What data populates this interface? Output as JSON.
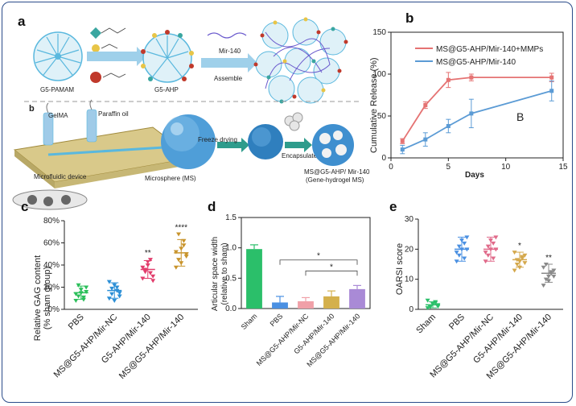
{
  "panel_a": {
    "letter": "a",
    "sub_letter": "b",
    "g5_pamam": "G5-PAMAM",
    "g5_ahp": "G5-AHP",
    "mir140": "Mir-140",
    "assemble": "Assemble",
    "gelma": "GelMA",
    "paraffin": "Paraffin oil",
    "microsphere": "Microsphere (MS)",
    "freeze": "Freeze drying",
    "encapsulate": "Encapsulate",
    "product_line1": "MS@G5-AHP/ Mir-140",
    "product_line2": "(Gene-hydrogel MS)",
    "device": "Microfluidic device",
    "colors": {
      "dendrimer": "#5ab8de",
      "arrow": "#4a90c8",
      "dot_red": "#c0392b",
      "dot_yellow": "#e8c547",
      "dot_teal": "#3aa6a0"
    }
  },
  "panel_b": {
    "letter": "b",
    "annotation": "B",
    "ylabel": "Cumulative Release (%)",
    "xlabel": "Days",
    "legend": [
      "MS@G5-AHP/Mir-140+MMPs",
      "MS@G5-AHP/Mir-140"
    ]
  },
  "panel_c": {
    "letter": "c",
    "ylabel_line1": "Relative GAG content",
    "ylabel_line2": "(% sham group)"
  },
  "panel_d": {
    "letter": "d",
    "ylabel_line1": "Articular space width",
    "ylabel_line2": "(relative to sham)"
  },
  "panel_e": {
    "letter": "e",
    "ylabel": "OARSI score"
  },
  "chart_data": [
    {
      "type": "line",
      "panel": "b",
      "xlabel": "Days",
      "ylabel": "Cumulative Release (%)",
      "xlim": [
        0,
        15
      ],
      "ylim": [
        0,
        150
      ],
      "xticks": [
        0,
        5,
        10,
        15
      ],
      "yticks": [
        0,
        50,
        100,
        150
      ],
      "legend_position": "top-right",
      "series": [
        {
          "name": "MS@G5-AHP/Mir-140+MMPs",
          "color": "#e57373",
          "x": [
            1,
            3,
            5,
            7,
            14
          ],
          "y": [
            20,
            63,
            93,
            96,
            96
          ],
          "err": [
            3,
            4,
            9,
            4,
            5
          ]
        },
        {
          "name": "MS@G5-AHP/Mir-140",
          "color": "#5b9bd5",
          "x": [
            1,
            3,
            5,
            7,
            14
          ],
          "y": [
            10,
            22,
            38,
            53,
            80
          ],
          "err": [
            5,
            8,
            8,
            17,
            12
          ]
        }
      ]
    },
    {
      "type": "scatter",
      "panel": "c",
      "ylabel": "Relative GAG content (% sham group)",
      "ylim": [
        0,
        80
      ],
      "yticks": [
        0,
        20,
        40,
        60,
        80
      ],
      "yticklabels": [
        "0%",
        "20%",
        "40%",
        "60%",
        "80%"
      ],
      "categories": [
        "PBS",
        "MS@G5-AHP/Mir-NC",
        "G5-AHP/Mir-140",
        "MS@G5-AHP/Mir-140"
      ],
      "colors": [
        "#2bbf5a",
        "#2c8fd6",
        "#e23d6c",
        "#c8942c"
      ],
      "means": [
        15,
        17,
        36,
        51
      ],
      "sd": [
        6,
        7,
        8,
        12
      ],
      "significance": [
        "",
        "",
        "**",
        "****"
      ],
      "points": [
        [
          8,
          12,
          15,
          9,
          20,
          14,
          22,
          18,
          11,
          16
        ],
        [
          10,
          14,
          22,
          17,
          12,
          25,
          19,
          8,
          20,
          15
        ],
        [
          28,
          34,
          40,
          45,
          30,
          38,
          36,
          43,
          33,
          26
        ],
        [
          38,
          45,
          55,
          62,
          48,
          52,
          68,
          42,
          58,
          50
        ]
      ]
    },
    {
      "type": "bar",
      "panel": "d",
      "ylabel": "Articular space width (relative to sham)",
      "ylim": [
        0,
        1.5
      ],
      "yticks": [
        0.0,
        0.5,
        1.0,
        1.5
      ],
      "yticklabels": [
        "0.0",
        "0.5",
        "1.0",
        "1.5"
      ],
      "categories": [
        "Sham",
        "PBS",
        "MS@G5-AHP/Mir-NC",
        "G5-AHP/Mir-140",
        "MS@G5-AHP/Mir-140"
      ],
      "colors": [
        "#2bbf6a",
        "#4a90e2",
        "#f0a0a8",
        "#d4b04c",
        "#a98ad6"
      ],
      "values": [
        0.98,
        0.1,
        0.12,
        0.2,
        0.32
      ],
      "err": [
        0.07,
        0.1,
        0.06,
        0.09,
        0.06
      ],
      "significance": [
        {
          "from": 1,
          "to": 4,
          "label": "*"
        },
        {
          "from": 2,
          "to": 4,
          "label": "*"
        }
      ]
    },
    {
      "type": "scatter",
      "panel": "e",
      "ylabel": "OARSI score",
      "ylim": [
        0,
        30
      ],
      "yticks": [
        0,
        10,
        20,
        30
      ],
      "yticklabels": [
        "0",
        "10",
        "20",
        "30"
      ],
      "categories": [
        "Sham",
        "PBS",
        "MS@G5-AHP/Mir-NC",
        "G5-AHP/Mir-140",
        "MS@G5-AHP/Mir-140"
      ],
      "colors": [
        "#2bbf6a",
        "#4a90e2",
        "#e06a8a",
        "#d4a84c",
        "#8a8a8a"
      ],
      "means": [
        1.5,
        20,
        20,
        16.5,
        12
      ],
      "sd": [
        1,
        4,
        4,
        2.5,
        3
      ],
      "significance": [
        "",
        "",
        "",
        "*",
        "**"
      ],
      "points": [
        [
          0.5,
          1,
          2,
          2.5,
          1.5,
          3,
          0.8,
          1.8,
          2.2,
          1
        ],
        [
          16,
          18,
          20,
          22,
          24,
          19,
          21,
          23,
          17,
          20
        ],
        [
          16,
          18,
          20,
          22,
          24,
          19,
          21,
          23,
          17,
          20
        ],
        [
          13,
          15,
          16,
          17,
          18,
          19,
          16.5,
          14,
          17.5,
          15.5
        ],
        [
          8,
          10,
          11,
          12,
          13,
          14,
          15,
          9.5,
          12.5,
          11
        ]
      ]
    }
  ]
}
